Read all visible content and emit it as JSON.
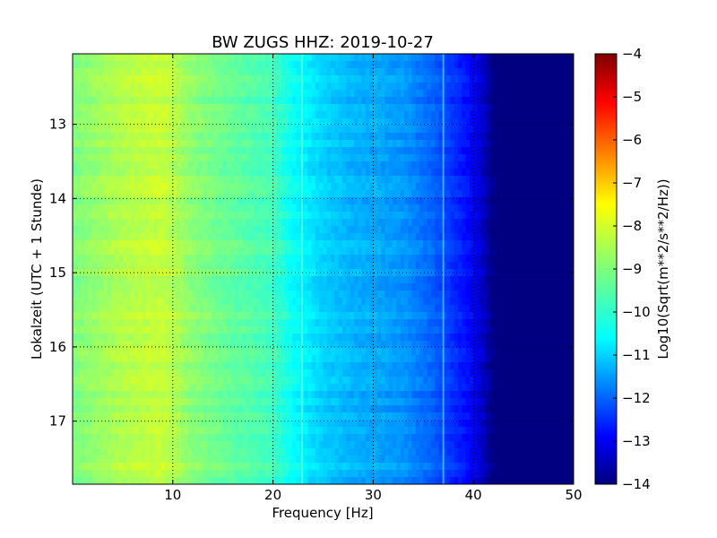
{
  "chart_data": {
    "type": "heatmap",
    "title": "BW ZUGS HHZ: 2019-10-27",
    "xlabel": "Frequency [Hz]",
    "ylabel": "Lokalzeit (UTC + 1 Stunde)",
    "xlim": [
      0,
      50
    ],
    "ylim": [
      12.05,
      17.85
    ],
    "y_inverted": true,
    "x_ticks": [
      10,
      20,
      30,
      40,
      50
    ],
    "y_ticks": [
      13,
      14,
      15,
      16,
      17
    ],
    "grid": true,
    "colormap": "jet",
    "colorbar": {
      "label": "Log10(Sqrt(m**2/s**2/Hz))",
      "range": [
        -14,
        -4
      ],
      "ticks": [
        -4,
        -5,
        -6,
        -7,
        -8,
        -9,
        -10,
        -11,
        -12,
        -13,
        -14
      ]
    },
    "spectrum_profile": {
      "frequency_hz": [
        0,
        5,
        9,
        12,
        16,
        20,
        22,
        25,
        28,
        30,
        33,
        36,
        38,
        40,
        42,
        50
      ],
      "log10_amplitude": [
        -9.0,
        -8.5,
        -8.3,
        -8.9,
        -9.3,
        -9.6,
        -10.2,
        -10.7,
        -11.0,
        -11.1,
        -11.3,
        -11.8,
        -12.3,
        -12.8,
        -14.0,
        -14.0
      ]
    },
    "features": [
      {
        "frequency_hz": 22.9,
        "note": "vertical stripe"
      },
      {
        "frequency_hz": 37.0,
        "note": "faint vertical line"
      }
    ]
  }
}
